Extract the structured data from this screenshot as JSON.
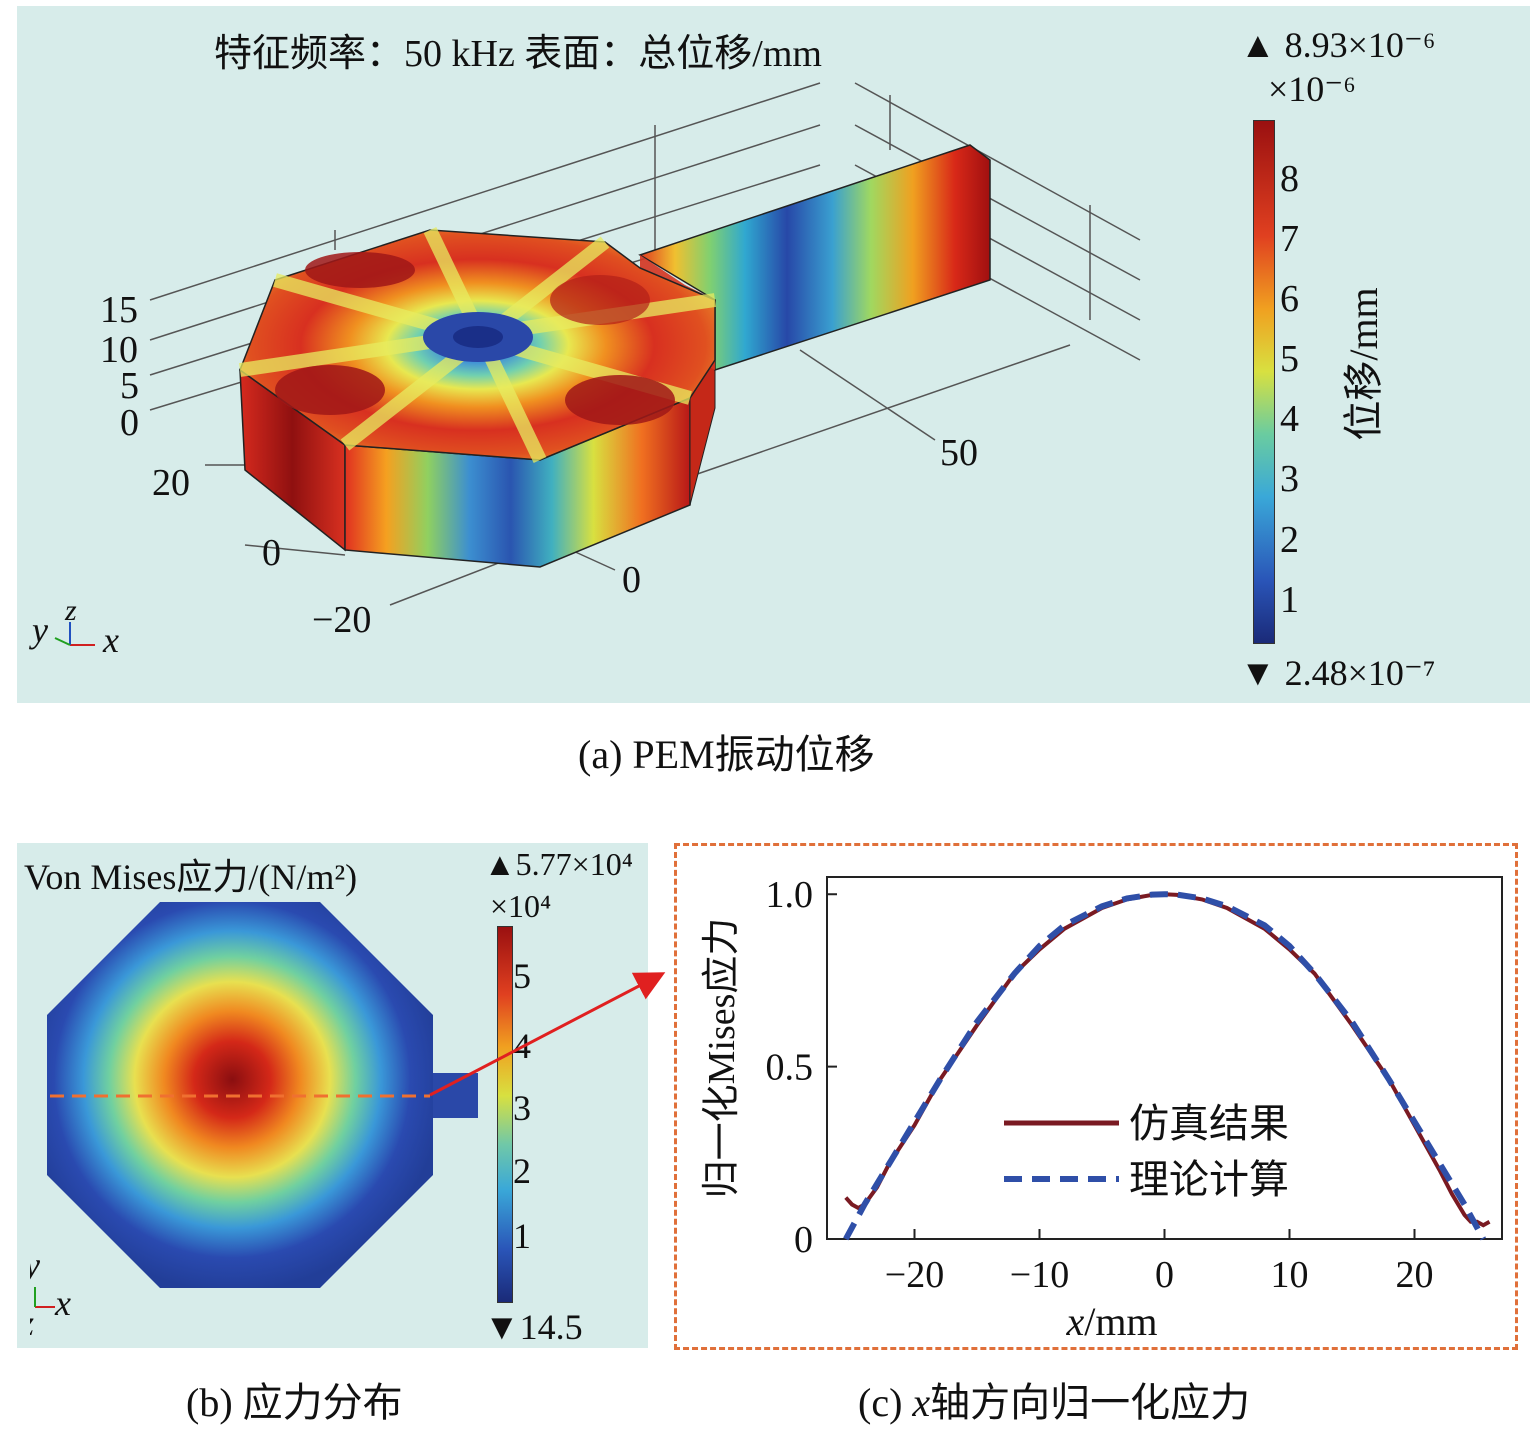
{
  "panel_a": {
    "title": "特征频率：50 kHz  表面：总位移/mm",
    "caption": "(a) PEM振动位移",
    "colorbar": {
      "max_text": "▲ 8.93×10⁻⁶",
      "scale_text": "×10⁻⁶",
      "min_text": "▼ 2.48×10⁻⁷",
      "label": "位移/mm",
      "ticks": [
        "8",
        "7",
        "6",
        "5",
        "4",
        "3",
        "2",
        "1"
      ]
    },
    "axis_ticks": {
      "z": [
        "15",
        "10",
        "5",
        "0"
      ],
      "y": [
        "20",
        "0",
        "−20"
      ],
      "x": [
        "0",
        "50"
      ]
    },
    "triad": {
      "y": "y",
      "z": "z",
      "x": "x"
    }
  },
  "panel_b": {
    "title": "Von Mises应力/(N/m²)",
    "caption": "(b) 应力分布",
    "colorbar": {
      "max_text": "▲5.77×10⁴",
      "scale_text": "×10⁴",
      "min_text": "▼14.5",
      "ticks": [
        "5",
        "4",
        "3",
        "2",
        "1"
      ]
    },
    "triad": {
      "y": "y",
      "z": "z",
      "x": "x"
    }
  },
  "chart_data": {
    "type": "line",
    "xlabel": "x/mm",
    "ylabel": "归一化Mises应力",
    "xlim": [
      -27,
      27
    ],
    "ylim": [
      0,
      1.05
    ],
    "xticks": [
      "−20",
      "−10",
      "0",
      "10",
      "20"
    ],
    "yticks": [
      "0",
      "0.5",
      "1.0"
    ],
    "series": [
      {
        "name": "仿真结果",
        "color": "#7a1a22",
        "style": "solid",
        "x": [
          -25.5,
          -25,
          -24.5,
          -24,
          -23,
          -22,
          -20,
          -18,
          -15,
          -12,
          -10,
          -8,
          -5,
          -3,
          -1,
          0,
          1,
          3,
          5,
          8,
          10,
          12,
          15,
          18,
          20,
          22,
          23,
          24,
          24.5,
          25,
          25.5,
          26
        ],
        "y": [
          0.12,
          0.1,
          0.09,
          0.1,
          0.15,
          0.22,
          0.33,
          0.46,
          0.62,
          0.77,
          0.84,
          0.9,
          0.96,
          0.985,
          0.998,
          1.0,
          0.998,
          0.985,
          0.96,
          0.9,
          0.84,
          0.77,
          0.62,
          0.46,
          0.33,
          0.2,
          0.13,
          0.07,
          0.05,
          0.05,
          0.04,
          0.05
        ]
      },
      {
        "name": "理论计算",
        "color": "#2f4fa8",
        "style": "dashed",
        "x": [
          -25.5,
          -24,
          -22,
          -20,
          -18,
          -15,
          -12,
          -10,
          -8,
          -5,
          -3,
          -1,
          0,
          1,
          3,
          5,
          8,
          10,
          12,
          15,
          18,
          20,
          22,
          24,
          25.5
        ],
        "y": [
          0.0,
          0.1,
          0.22,
          0.34,
          0.46,
          0.63,
          0.77,
          0.85,
          0.91,
          0.965,
          0.988,
          0.999,
          1.0,
          0.999,
          0.988,
          0.965,
          0.91,
          0.85,
          0.77,
          0.63,
          0.46,
          0.34,
          0.22,
          0.1,
          0.0
        ]
      }
    ]
  },
  "panel_c": {
    "caption_var": "x",
    "caption_rest": "轴方向归一化应力",
    "caption_prefix": "(c) "
  }
}
